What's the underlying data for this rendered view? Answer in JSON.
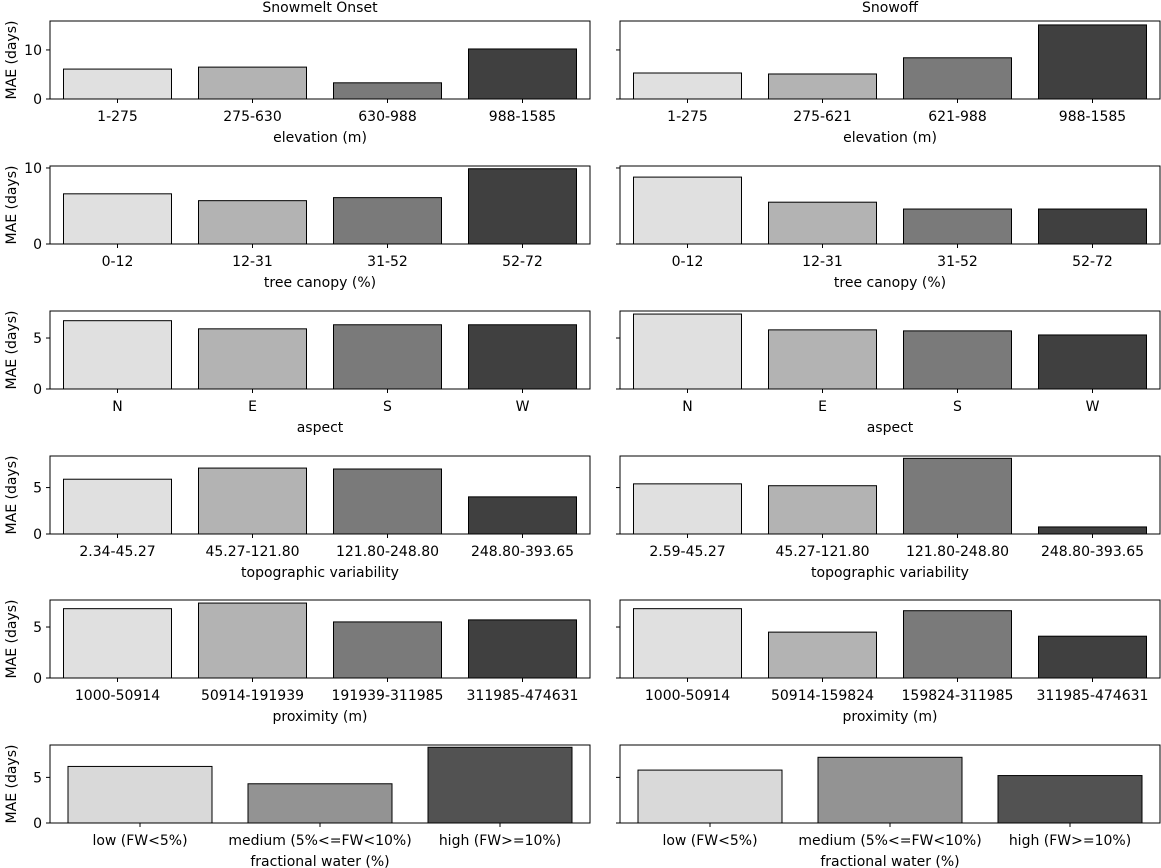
{
  "chart_data": [
    {
      "type": "bar",
      "title": "Snowmelt Onset",
      "xlabel": "elevation (m)",
      "ylabel": "MAE (days)",
      "categories": [
        "1-275",
        "275-630",
        "630-988",
        "988-1585"
      ],
      "values": [
        6.1,
        6.5,
        3.3,
        10.2
      ],
      "ylim": [
        0,
        15.9
      ],
      "yticks": [
        0,
        10
      ],
      "colors": [
        "#e0e0e0",
        "#b3b3b3",
        "#7a7a7a",
        "#404040"
      ]
    },
    {
      "type": "bar",
      "title": "Snowoff",
      "xlabel": "elevation (m)",
      "ylabel": "",
      "categories": [
        "1-275",
        "275-621",
        "621-988",
        "988-1585"
      ],
      "values": [
        5.3,
        5.1,
        8.4,
        15.1
      ],
      "ylim": [
        0,
        15.9
      ],
      "yticks": [
        0,
        10
      ],
      "colors": [
        "#e0e0e0",
        "#b3b3b3",
        "#7a7a7a",
        "#404040"
      ]
    },
    {
      "type": "bar",
      "title": "",
      "xlabel": "tree canopy (%)",
      "ylabel": "MAE (days)",
      "categories": [
        "0-12",
        "12-31",
        "31-52",
        "52-72"
      ],
      "values": [
        6.6,
        5.7,
        6.1,
        9.9
      ],
      "ylim": [
        0,
        10.26
      ],
      "yticks": [
        0,
        10
      ],
      "colors": [
        "#e0e0e0",
        "#b3b3b3",
        "#7a7a7a",
        "#404040"
      ]
    },
    {
      "type": "bar",
      "title": "",
      "xlabel": "tree canopy (%)",
      "ylabel": "",
      "categories": [
        "0-12",
        "12-31",
        "31-52",
        "52-72"
      ],
      "values": [
        8.8,
        5.5,
        4.6,
        4.6
      ],
      "ylim": [
        0,
        10.26
      ],
      "yticks": [
        0,
        10
      ],
      "colors": [
        "#e0e0e0",
        "#b3b3b3",
        "#7a7a7a",
        "#404040"
      ]
    },
    {
      "type": "bar",
      "title": "",
      "xlabel": "aspect",
      "ylabel": "MAE (days)",
      "categories": [
        "N",
        "E",
        "S",
        "W"
      ],
      "values": [
        6.7,
        5.9,
        6.3,
        6.3
      ],
      "ylim": [
        0,
        7.65
      ],
      "yticks": [
        0,
        5
      ],
      "colors": [
        "#e0e0e0",
        "#b3b3b3",
        "#7a7a7a",
        "#404040"
      ]
    },
    {
      "type": "bar",
      "title": "",
      "xlabel": "aspect",
      "ylabel": "",
      "categories": [
        "N",
        "E",
        "S",
        "W"
      ],
      "values": [
        7.35,
        5.8,
        5.7,
        5.3
      ],
      "ylim": [
        0,
        7.65
      ],
      "yticks": [
        0,
        5
      ],
      "colors": [
        "#e0e0e0",
        "#b3b3b3",
        "#7a7a7a",
        "#404040"
      ]
    },
    {
      "type": "bar",
      "title": "",
      "xlabel": "topographic variability",
      "ylabel": "MAE (days)",
      "categories": [
        "2.34-45.27",
        "45.27-121.80",
        "121.80-248.80",
        "248.80-393.65"
      ],
      "values": [
        5.9,
        7.1,
        7.0,
        4.0
      ],
      "ylim": [
        0,
        8.4
      ],
      "yticks": [
        0,
        5
      ],
      "colors": [
        "#e0e0e0",
        "#b3b3b3",
        "#7a7a7a",
        "#404040"
      ]
    },
    {
      "type": "bar",
      "title": "",
      "xlabel": "topographic variability",
      "ylabel": "",
      "categories": [
        "2.59-45.27",
        "45.27-121.80",
        "121.80-248.80",
        "248.80-393.65"
      ],
      "values": [
        5.4,
        5.2,
        8.15,
        0.76
      ],
      "ylim": [
        0,
        8.4
      ],
      "yticks": [
        0,
        5
      ],
      "colors": [
        "#e0e0e0",
        "#b3b3b3",
        "#7a7a7a",
        "#404040"
      ]
    },
    {
      "type": "bar",
      "title": "",
      "xlabel": "proximity (m)",
      "ylabel": "MAE (days)",
      "categories": [
        "1000-50914",
        "50914-191939",
        "191939-311985",
        "311985-474631"
      ],
      "values": [
        6.8,
        7.35,
        5.5,
        5.7
      ],
      "ylim": [
        0,
        7.65
      ],
      "yticks": [
        0,
        5
      ],
      "colors": [
        "#e0e0e0",
        "#b3b3b3",
        "#7a7a7a",
        "#404040"
      ]
    },
    {
      "type": "bar",
      "title": "",
      "xlabel": "proximity (m)",
      "ylabel": "",
      "categories": [
        "1000-50914",
        "50914-159824",
        "159824-311985",
        "311985-474631"
      ],
      "values": [
        6.8,
        4.5,
        6.6,
        4.1
      ],
      "ylim": [
        0,
        7.65
      ],
      "yticks": [
        0,
        5
      ],
      "colors": [
        "#e0e0e0",
        "#b3b3b3",
        "#7a7a7a",
        "#404040"
      ]
    },
    {
      "type": "bar",
      "title": "",
      "xlabel": "fractional water (%)",
      "ylabel": "MAE (days)",
      "categories": [
        "low (FW<5%)",
        "medium (5%<=FW<10%)",
        "high (FW>=10%)"
      ],
      "values": [
        6.2,
        4.3,
        8.3
      ],
      "ylim": [
        0,
        8.55
      ],
      "yticks": [
        0,
        5
      ],
      "colors": [
        "#d9d9d9",
        "#939393",
        "#525252"
      ]
    },
    {
      "type": "bar",
      "title": "",
      "xlabel": "fractional water (%)",
      "ylabel": "",
      "categories": [
        "low (FW<5%)",
        "medium (5%<=FW<10%)",
        "high (FW>=10%)"
      ],
      "values": [
        5.8,
        7.2,
        5.2
      ],
      "ylim": [
        0,
        8.55
      ],
      "yticks": [
        0,
        5
      ],
      "colors": [
        "#d9d9d9",
        "#939393",
        "#525252"
      ]
    }
  ]
}
